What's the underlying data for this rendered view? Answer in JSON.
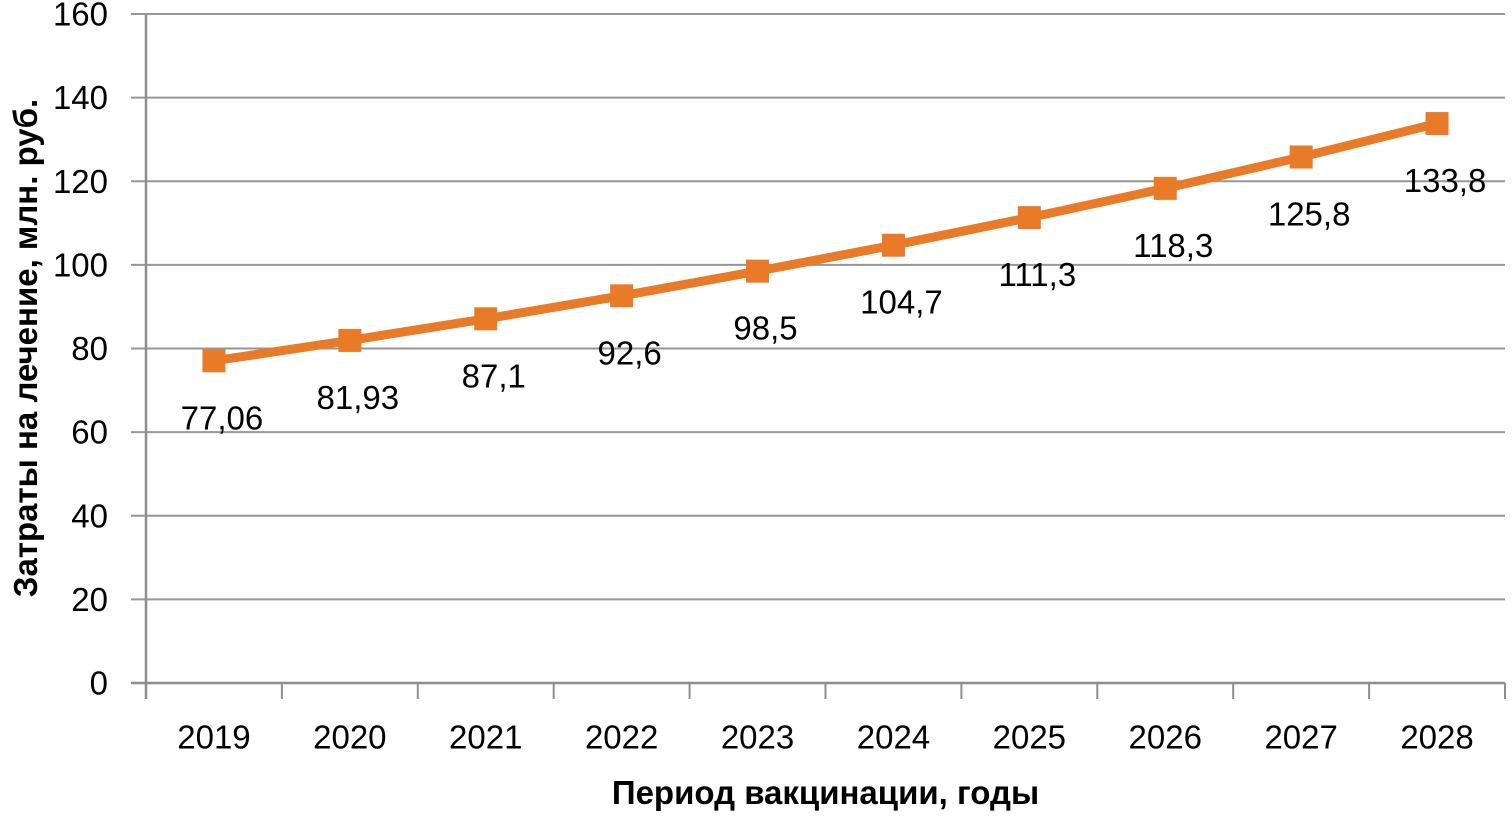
{
  "chart_data": {
    "type": "line",
    "title": "",
    "categories": [
      "2019",
      "2020",
      "2021",
      "2022",
      "2023",
      "2024",
      "2025",
      "2026",
      "2027",
      "2028"
    ],
    "series": [
      {
        "values": [
          77.06,
          81.93,
          87.1,
          92.6,
          98.5,
          104.7,
          111.3,
          118.3,
          125.8,
          133.8
        ],
        "point_labels": [
          "77,06",
          "81,93",
          "87,1",
          "92,6",
          "98,5",
          "104,7",
          "111,3",
          "118,3",
          "125,8",
          "133,8"
        ]
      }
    ],
    "xlabel": "Период вакцинации, годы",
    "ylabel": "Затраты на лечение, млн. руб.",
    "ylim": [
      0,
      160
    ],
    "ytick_step": 20,
    "ytick_labels": [
      "0",
      "20",
      "40",
      "60",
      "80",
      "100",
      "120",
      "140",
      "160"
    ],
    "grid": true,
    "legend": "none",
    "marker": "square",
    "colors": {
      "line": "#E87A28",
      "marker": "#E87A28",
      "gridline": "#969696",
      "axis": "#8E8E8E",
      "text": "#000000"
    }
  }
}
